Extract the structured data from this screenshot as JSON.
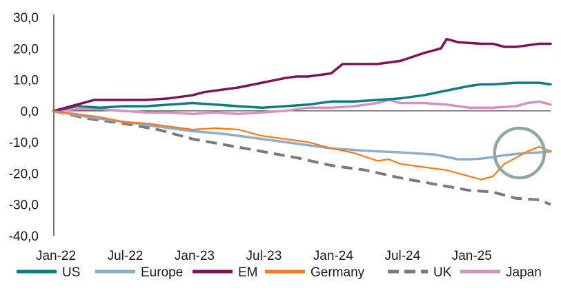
{
  "chart_data": {
    "type": "line",
    "title": "",
    "xlabel": "",
    "ylabel": "",
    "ylim": [
      -40,
      30
    ],
    "yticks": [
      30,
      20,
      10,
      0,
      -10,
      -20,
      -30,
      -40
    ],
    "ytick_labels": [
      "30,0",
      "20,0",
      "10,0",
      "0,0",
      "-10,0",
      "-20,0",
      "-30,0",
      "-40,0"
    ],
    "xlim": [
      0,
      43
    ],
    "xticks": [
      0,
      6,
      12,
      18,
      24,
      30,
      36
    ],
    "xtick_labels": [
      "Jan-22",
      "Jul-22",
      "Jan-23",
      "Jul-23",
      "Jan-24",
      "Jul-24",
      "Jan-25"
    ],
    "legend_position": "bottom",
    "highlight_circle": {
      "x": 40.3,
      "y": -13.5,
      "color": "#8fa8a4"
    },
    "series": [
      {
        "name": "US",
        "color": "#0f7d7e",
        "style": "solid",
        "x": [
          0,
          2,
          4,
          6,
          8,
          10,
          12,
          14,
          16,
          18,
          20,
          22,
          24,
          26,
          28,
          30,
          32,
          34,
          36,
          37,
          38,
          40,
          42,
          43
        ],
        "y": [
          0,
          1.5,
          1,
          1.5,
          1.5,
          2,
          2.5,
          2,
          1.5,
          1,
          1.5,
          2,
          3,
          3,
          3.5,
          4,
          5,
          6.5,
          8,
          8.5,
          8.5,
          9,
          9,
          8.5
        ]
      },
      {
        "name": "Europe",
        "color": "#8fadc8",
        "style": "solid",
        "x": [
          0,
          3,
          6,
          9,
          12,
          15,
          18,
          21,
          24,
          27,
          30,
          33,
          35,
          36,
          37,
          38,
          39,
          40,
          41,
          42,
          43
        ],
        "y": [
          0,
          -2,
          -3.5,
          -5,
          -6.5,
          -7.5,
          -9,
          -10.5,
          -12,
          -12.8,
          -13.3,
          -14,
          -15.5,
          -15.5,
          -15.3,
          -14.8,
          -14.2,
          -13.8,
          -13.5,
          -13.3,
          -13
        ]
      },
      {
        "name": "EM",
        "color": "#7c1458",
        "style": "solid",
        "x": [
          0,
          2,
          3.5,
          4,
          6,
          8,
          10,
          12,
          13,
          14,
          16,
          18,
          20,
          21,
          22,
          24,
          25,
          26,
          28,
          30,
          32,
          33.5,
          34,
          35,
          37,
          38,
          39,
          40,
          42,
          43
        ],
        "y": [
          0,
          2,
          3.5,
          3.5,
          3.5,
          3.5,
          4,
          5,
          6,
          6.5,
          7.5,
          9,
          10.5,
          11,
          11,
          12,
          15,
          15,
          15,
          16,
          18.5,
          20,
          23,
          22,
          21.5,
          21.5,
          20.5,
          20.5,
          21.5,
          21.5
        ]
      },
      {
        "name": "Germany",
        "color": "#f57a1e",
        "style": "solid",
        "x": [
          0,
          2,
          4,
          6,
          8,
          10,
          12,
          14,
          16,
          18,
          20,
          22,
          24,
          26,
          28,
          29,
          30,
          32,
          34,
          36,
          37,
          38,
          39,
          40,
          41,
          42,
          43
        ],
        "y": [
          0,
          -1,
          -2,
          -3.5,
          -4,
          -5,
          -6,
          -5.5,
          -6,
          -8,
          -9,
          -10,
          -12,
          -13.5,
          -16,
          -15.5,
          -17,
          -18,
          -19,
          -21,
          -22,
          -21,
          -17,
          -15,
          -13,
          -11.5,
          -13
        ]
      },
      {
        "name": "UK",
        "color": "#7a7a7a",
        "style": "dashed",
        "x": [
          0,
          3,
          6,
          9,
          12,
          15,
          18,
          21,
          24,
          27,
          30,
          33,
          36,
          38,
          40,
          42,
          43
        ],
        "y": [
          0,
          -2.5,
          -4,
          -6,
          -9,
          -11,
          -13,
          -15,
          -17.5,
          -19,
          -21.5,
          -23.5,
          -25.5,
          -26,
          -28,
          -28.5,
          -30
        ]
      },
      {
        "name": "Japan",
        "color": "#d493bd",
        "style": "solid",
        "x": [
          0,
          2,
          4,
          6,
          8,
          10,
          12,
          14,
          16,
          18,
          20,
          22,
          24,
          26,
          28,
          29,
          30,
          32,
          34,
          36,
          38,
          40,
          41,
          42,
          43
        ],
        "y": [
          0,
          0.5,
          0.5,
          0,
          -0.5,
          -0.5,
          -1,
          -0.5,
          -1,
          -0.5,
          0,
          1,
          1,
          1.5,
          2.5,
          3.5,
          2.5,
          2.5,
          2,
          1,
          1,
          1.5,
          2.5,
          3,
          2
        ]
      }
    ]
  }
}
